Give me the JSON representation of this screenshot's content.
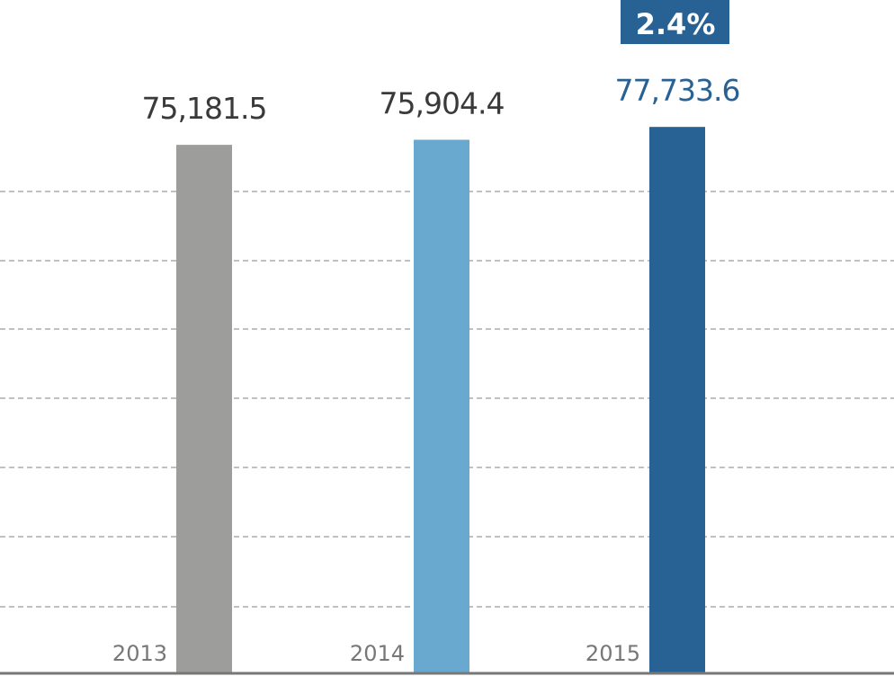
{
  "chart_data": {
    "type": "bar",
    "categories": [
      "2013",
      "2014",
      "2015"
    ],
    "values": [
      75181.5,
      75904.4,
      77733.6
    ],
    "value_labels": [
      "75,181.5",
      "75,904.4",
      "77,733.6"
    ],
    "growth_badge": "2.4%",
    "title": "",
    "xlabel": "",
    "ylabel": "",
    "ylim": [
      0,
      80000
    ],
    "grid": true,
    "colors": [
      "#9d9d9c",
      "#6aa9cf",
      "#286193"
    ],
    "value_label_colors": [
      "#3a3a3a",
      "#3a3a3a",
      "#286193"
    ],
    "badge_color": "#286193",
    "axis_color": "#777777",
    "grid_color": "#9a9a9a"
  }
}
